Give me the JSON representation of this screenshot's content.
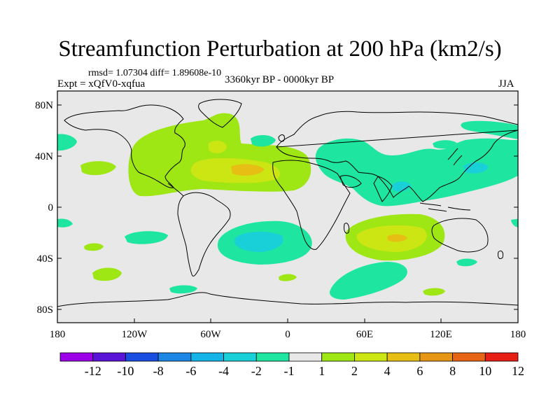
{
  "header": {
    "title": "Streamfunction Perturbation at 200 hPa (km2/s)",
    "stats": "rmsd= 1.07304 diff= 1.89608e-10",
    "experiment": "Expt = xQfV0-xqfua",
    "period": "3360kyr BP - 0000kyr BP",
    "season": "JJA"
  },
  "axes": {
    "x_ticks": [
      "180",
      "120W",
      "60W",
      "0",
      "60E",
      "120E",
      "180"
    ],
    "y_ticks": [
      "80N",
      "40N",
      "0",
      "40S",
      "80S"
    ]
  },
  "colorbar": {
    "labels": [
      "-12",
      "-10",
      "-8",
      "-6",
      "-4",
      "-2",
      "-1",
      "1",
      "2",
      "4",
      "6",
      "8",
      "10",
      "12"
    ],
    "colors": [
      "#9b00e8",
      "#5a14d8",
      "#1a4ee0",
      "#1c86e4",
      "#14b4e8",
      "#19d0d8",
      "#1ee6a0",
      "#e8e8e8",
      "#9ee614",
      "#cce614",
      "#e6be14",
      "#e69614",
      "#e66414",
      "#e61e14"
    ]
  },
  "map_colors": {
    "background": "#e8e8e8",
    "light_pos": "#9ee614",
    "mid_pos": "#cce614",
    "strong_pos": "#e6be14",
    "light_neg": "#1ee6a0",
    "mid_neg": "#19d0d8",
    "strong_neg": "#14b4e8"
  }
}
